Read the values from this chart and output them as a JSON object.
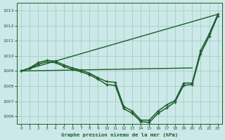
{
  "background_color": "#cce8e8",
  "grid_color": "#99ccbb",
  "line_color": "#1a5c2a",
  "title": "Graphe pression niveau de la mer (hPa)",
  "xlim": [
    -0.5,
    23.5
  ],
  "ylim": [
    1005.5,
    1013.5
  ],
  "yticks": [
    1006,
    1007,
    1008,
    1009,
    1010,
    1011,
    1012,
    1013
  ],
  "xticks": [
    0,
    1,
    2,
    3,
    4,
    5,
    6,
    7,
    8,
    9,
    10,
    11,
    12,
    13,
    14,
    15,
    16,
    17,
    18,
    19,
    20,
    21,
    22,
    23
  ],
  "lines": [
    {
      "x": [
        0,
        23
      ],
      "y": [
        1009.0,
        1012.75
      ],
      "marker": false,
      "linewidth": 1.0
    },
    {
      "x": [
        0,
        20
      ],
      "y": [
        1009.0,
        1009.2
      ],
      "marker": false,
      "linewidth": 1.0
    },
    {
      "x": [
        0,
        1,
        2,
        3,
        4,
        5,
        6,
        7,
        8,
        9,
        10,
        11,
        12,
        13,
        14,
        15,
        16,
        17,
        18,
        19,
        20,
        21,
        22,
        23
      ],
      "y": [
        1009.0,
        1009.2,
        1009.55,
        1009.7,
        1009.65,
        1009.4,
        1009.2,
        1009.05,
        1008.85,
        1008.55,
        1008.3,
        1008.25,
        1006.65,
        1006.35,
        1005.75,
        1005.75,
        1006.35,
        1006.75,
        1007.05,
        1008.2,
        1008.2,
        1010.35,
        1011.45,
        1012.75
      ],
      "marker": true,
      "linewidth": 1.1
    },
    {
      "x": [
        0,
        1,
        2,
        3,
        4,
        5,
        6,
        7,
        8,
        9,
        10,
        11,
        12,
        13,
        14,
        15,
        16,
        17,
        18,
        19,
        20,
        21,
        22,
        23
      ],
      "y": [
        1009.0,
        1009.15,
        1009.45,
        1009.6,
        1009.55,
        1009.3,
        1009.1,
        1008.95,
        1008.75,
        1008.45,
        1008.1,
        1008.05,
        1006.5,
        1006.2,
        1005.65,
        1005.6,
        1006.2,
        1006.55,
        1006.95,
        1008.05,
        1008.1,
        1010.15,
        1011.3,
        1012.65
      ],
      "marker": true,
      "linewidth": 1.1
    }
  ]
}
